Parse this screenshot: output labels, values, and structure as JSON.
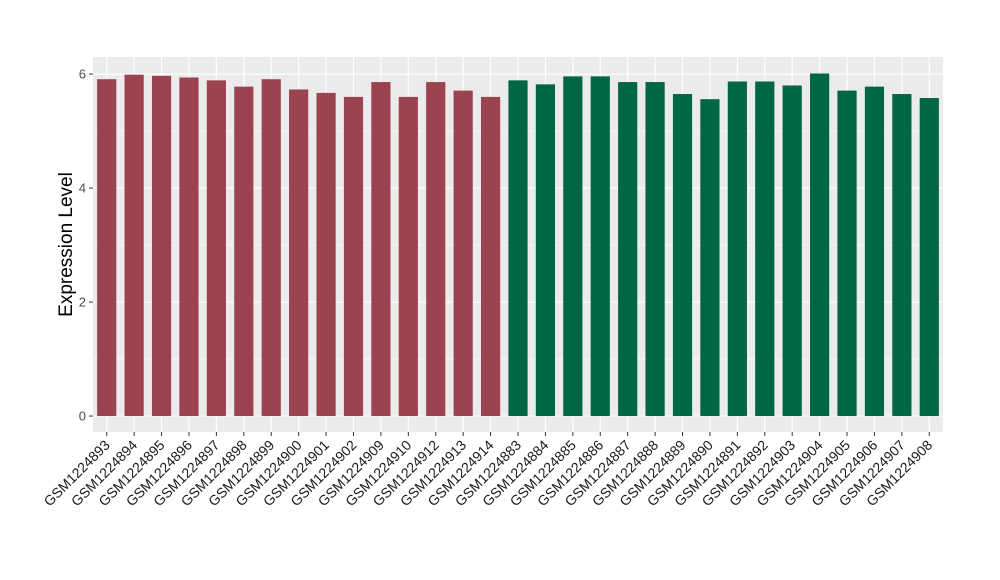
{
  "chart_data": {
    "type": "bar",
    "title": "",
    "xlabel": "",
    "ylabel": "Expression Level",
    "ylim": [
      -0.28,
      6.3
    ],
    "yticks": [
      0,
      2,
      4,
      6
    ],
    "grid": true,
    "legend": "none",
    "colors": {
      "red_group": "#9b4350",
      "green_group": "#006643",
      "panel_bg": "#ebebeb",
      "grid": "#ffffff"
    },
    "categories": [
      "GSM1224893",
      "GSM1224894",
      "GSM1224895",
      "GSM1224896",
      "GSM1224897",
      "GSM1224898",
      "GSM1224899",
      "GSM1224900",
      "GSM1224901",
      "GSM1224902",
      "GSM1224909",
      "GSM1224910",
      "GSM1224912",
      "GSM1224913",
      "GSM1224914",
      "GSM1224883",
      "GSM1224884",
      "GSM1224885",
      "GSM1224886",
      "GSM1224887",
      "GSM1224888",
      "GSM1224889",
      "GSM1224890",
      "GSM1224891",
      "GSM1224892",
      "GSM1224903",
      "GSM1224904",
      "GSM1224905",
      "GSM1224906",
      "GSM1224907",
      "GSM1224908"
    ],
    "values": [
      5.91,
      5.99,
      5.97,
      5.94,
      5.89,
      5.78,
      5.91,
      5.73,
      5.67,
      5.6,
      5.86,
      5.6,
      5.86,
      5.71,
      5.6,
      5.89,
      5.82,
      5.96,
      5.96,
      5.86,
      5.86,
      5.65,
      5.56,
      5.87,
      5.87,
      5.8,
      6.01,
      5.71,
      5.78,
      5.65,
      5.58
    ],
    "groups": [
      "red",
      "red",
      "red",
      "red",
      "red",
      "red",
      "red",
      "red",
      "red",
      "red",
      "red",
      "red",
      "red",
      "red",
      "red",
      "green",
      "green",
      "green",
      "green",
      "green",
      "green",
      "green",
      "green",
      "green",
      "green",
      "green",
      "green",
      "green",
      "green",
      "green",
      "green"
    ]
  }
}
